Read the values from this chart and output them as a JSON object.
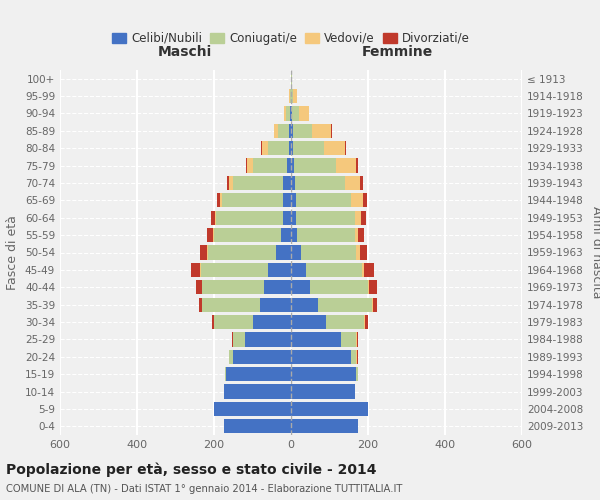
{
  "age_groups": [
    "0-4",
    "5-9",
    "10-14",
    "15-19",
    "20-24",
    "25-29",
    "30-34",
    "35-39",
    "40-44",
    "45-49",
    "50-54",
    "55-59",
    "60-64",
    "65-69",
    "70-74",
    "75-79",
    "80-84",
    "85-89",
    "90-94",
    "95-99",
    "100+"
  ],
  "birth_years": [
    "2009-2013",
    "2004-2008",
    "1999-2003",
    "1994-1998",
    "1989-1993",
    "1984-1988",
    "1979-1983",
    "1974-1978",
    "1969-1973",
    "1964-1968",
    "1959-1963",
    "1954-1958",
    "1949-1953",
    "1944-1948",
    "1939-1943",
    "1934-1938",
    "1929-1933",
    "1924-1928",
    "1919-1923",
    "1914-1918",
    "≤ 1913"
  ],
  "males": {
    "celibe": [
      175,
      200,
      175,
      170,
      150,
      120,
      100,
      80,
      70,
      60,
      40,
      25,
      20,
      20,
      20,
      10,
      5,
      4,
      2,
      1,
      1
    ],
    "coniugato": [
      0,
      0,
      0,
      2,
      10,
      30,
      100,
      150,
      160,
      175,
      175,
      175,
      175,
      160,
      130,
      90,
      55,
      30,
      10,
      2,
      0
    ],
    "vedovo": [
      0,
      0,
      0,
      0,
      0,
      0,
      0,
      0,
      1,
      1,
      2,
      2,
      3,
      5,
      10,
      15,
      15,
      10,
      5,
      1,
      0
    ],
    "divorziato": [
      0,
      0,
      0,
      0,
      0,
      2,
      5,
      10,
      15,
      25,
      20,
      15,
      10,
      8,
      5,
      3,
      2,
      0,
      0,
      0,
      0
    ]
  },
  "females": {
    "nubile": [
      175,
      200,
      165,
      170,
      155,
      130,
      90,
      70,
      50,
      40,
      25,
      15,
      12,
      12,
      10,
      8,
      5,
      4,
      2,
      1,
      1
    ],
    "coniugata": [
      0,
      0,
      0,
      5,
      15,
      40,
      100,
      140,
      150,
      145,
      145,
      150,
      155,
      145,
      130,
      110,
      80,
      50,
      20,
      5,
      1
    ],
    "vedova": [
      0,
      0,
      0,
      0,
      1,
      2,
      2,
      2,
      3,
      5,
      8,
      10,
      15,
      30,
      40,
      50,
      55,
      50,
      25,
      10,
      1
    ],
    "divorziata": [
      0,
      0,
      0,
      0,
      2,
      3,
      8,
      12,
      20,
      25,
      20,
      15,
      12,
      10,
      8,
      5,
      3,
      2,
      0,
      0,
      0
    ]
  },
  "colors": {
    "celibe_nubile": "#4472C4",
    "coniugato": "#BACF96",
    "vedovo": "#F5C87C",
    "divorziato": "#C0392B"
  },
  "xlim": 600,
  "title": "Popolazione per età, sesso e stato civile - 2014",
  "subtitle": "COMUNE DI ALA (TN) - Dati ISTAT 1° gennaio 2014 - Elaborazione TUTTITALIA.IT",
  "ylabel_left": "Fasce di età",
  "ylabel_right": "Anni di nascita",
  "xlabel_left": "Maschi",
  "xlabel_right": "Femmine",
  "background_color": "#f0f0f0"
}
